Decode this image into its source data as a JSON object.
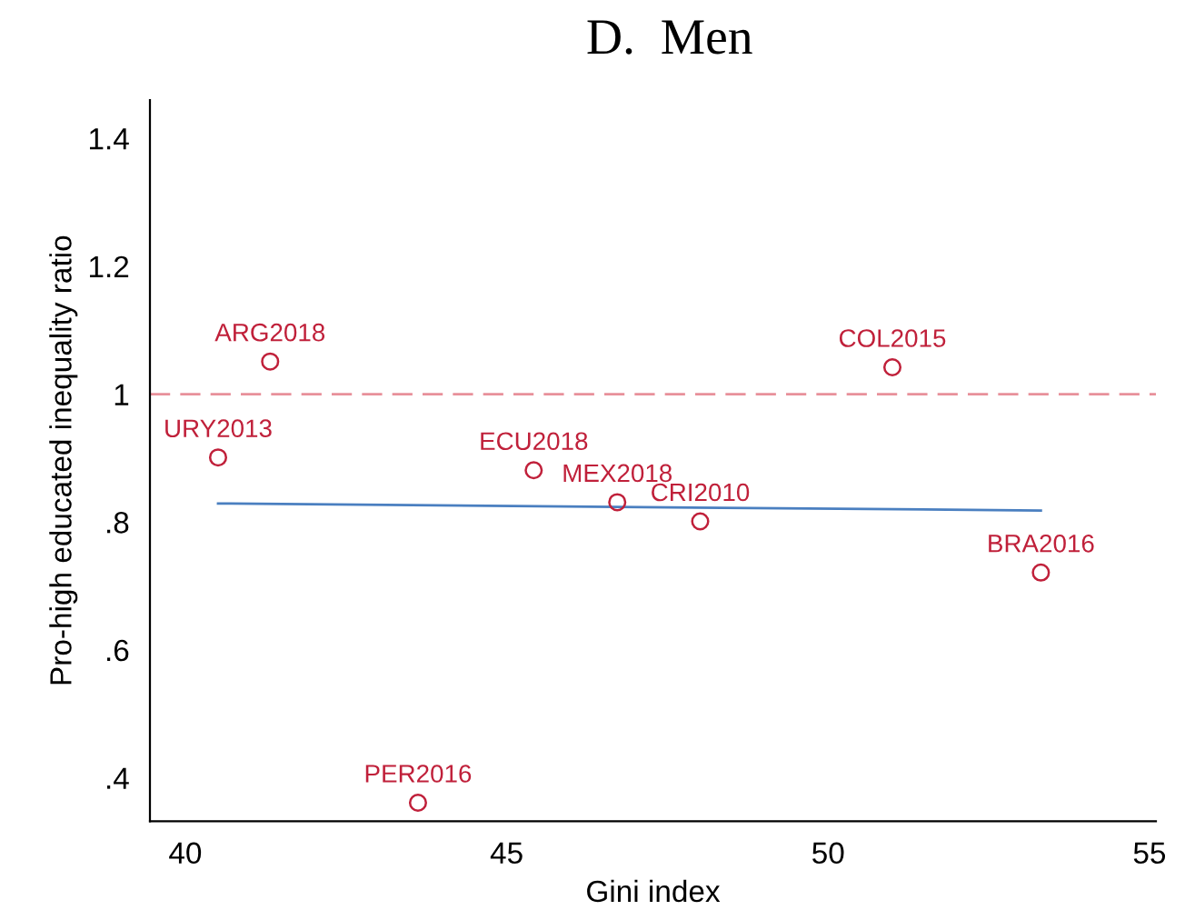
{
  "chart_data": {
    "type": "scatter",
    "title": "D.  Men",
    "xlabel": "Gini index",
    "ylabel": "Pro-high educated inequality ratio",
    "xlim": [
      39.45,
      55.1
    ],
    "ylim": [
      0.332,
      1.46
    ],
    "xticks": [
      40,
      45,
      50,
      55
    ],
    "yticks": [
      {
        "value": 0.4,
        "label": ".4"
      },
      {
        "value": 0.6,
        "label": ".6"
      },
      {
        "value": 0.8,
        "label": ".8"
      },
      {
        "value": 1,
        "label": "1"
      },
      {
        "value": 1.2,
        "label": "1.2"
      },
      {
        "value": 1.4,
        "label": "1.4"
      }
    ],
    "grid": false,
    "marker": "circle",
    "series": [
      {
        "color": "#c0203a",
        "x": [
          41.32,
          51.0,
          40.51,
          45.42,
          46.72,
          48.01,
          53.31,
          43.62
        ],
        "values": [
          1.051,
          1.042,
          0.901,
          0.881,
          0.831,
          0.801,
          0.721,
          0.361
        ]
      },
      {
        "type": "line",
        "color": "#4a7fc0",
        "x": [
          40.51,
          53.31
        ],
        "values": [
          0.829,
          0.818
        ],
        "marker": "none",
        "line_style": "solid"
      }
    ],
    "ref_lines": [
      {
        "axis": "y",
        "value": 1,
        "color": "#e8909a",
        "line_style": "dashed"
      }
    ],
    "annotations": [
      {
        "text": "ARG2018",
        "x": 41.32,
        "y": 1.051
      },
      {
        "text": "COL2015",
        "x": 51.0,
        "y": 1.042
      },
      {
        "text": "URY2013",
        "x": 40.51,
        "y": 0.901
      },
      {
        "text": "ECU2018",
        "x": 45.42,
        "y": 0.881
      },
      {
        "text": "MEX2018",
        "x": 46.72,
        "y": 0.831
      },
      {
        "text": "CRI2010",
        "x": 48.01,
        "y": 0.801
      },
      {
        "text": "BRA2016",
        "x": 53.31,
        "y": 0.721
      },
      {
        "text": "PER2016",
        "x": 43.62,
        "y": 0.361
      }
    ]
  }
}
